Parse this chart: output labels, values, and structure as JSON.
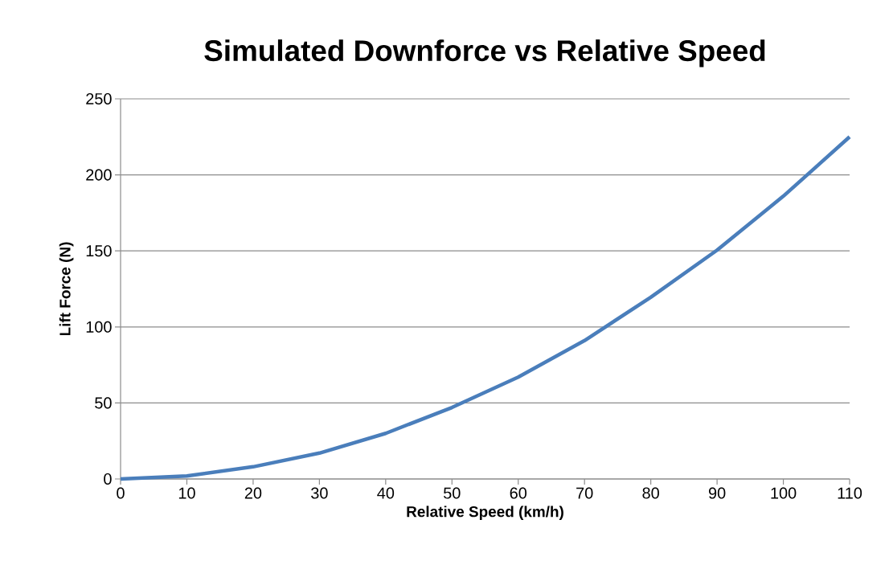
{
  "chart_data": {
    "type": "line",
    "title": "Simulated Downforce vs Relative Speed",
    "xlabel": "Relative Speed (km/h)",
    "ylabel": "Lift Force (N)",
    "x": [
      0,
      10,
      20,
      30,
      40,
      50,
      60,
      70,
      80,
      90,
      100,
      110
    ],
    "series": [
      {
        "color": "#4a7ebb",
        "values": [
          0,
          2,
          8,
          17,
          30,
          47,
          67,
          91,
          119.5,
          150.5,
          186,
          225
        ]
      }
    ],
    "xlim": [
      0,
      110
    ],
    "xticks": [
      0,
      10,
      20,
      30,
      40,
      50,
      60,
      70,
      80,
      90,
      100,
      110
    ],
    "ylim": [
      0,
      250
    ],
    "yticks": [
      0,
      50,
      100,
      150,
      200,
      250
    ],
    "grid": "y",
    "marker": "none",
    "line_style": "solid"
  }
}
